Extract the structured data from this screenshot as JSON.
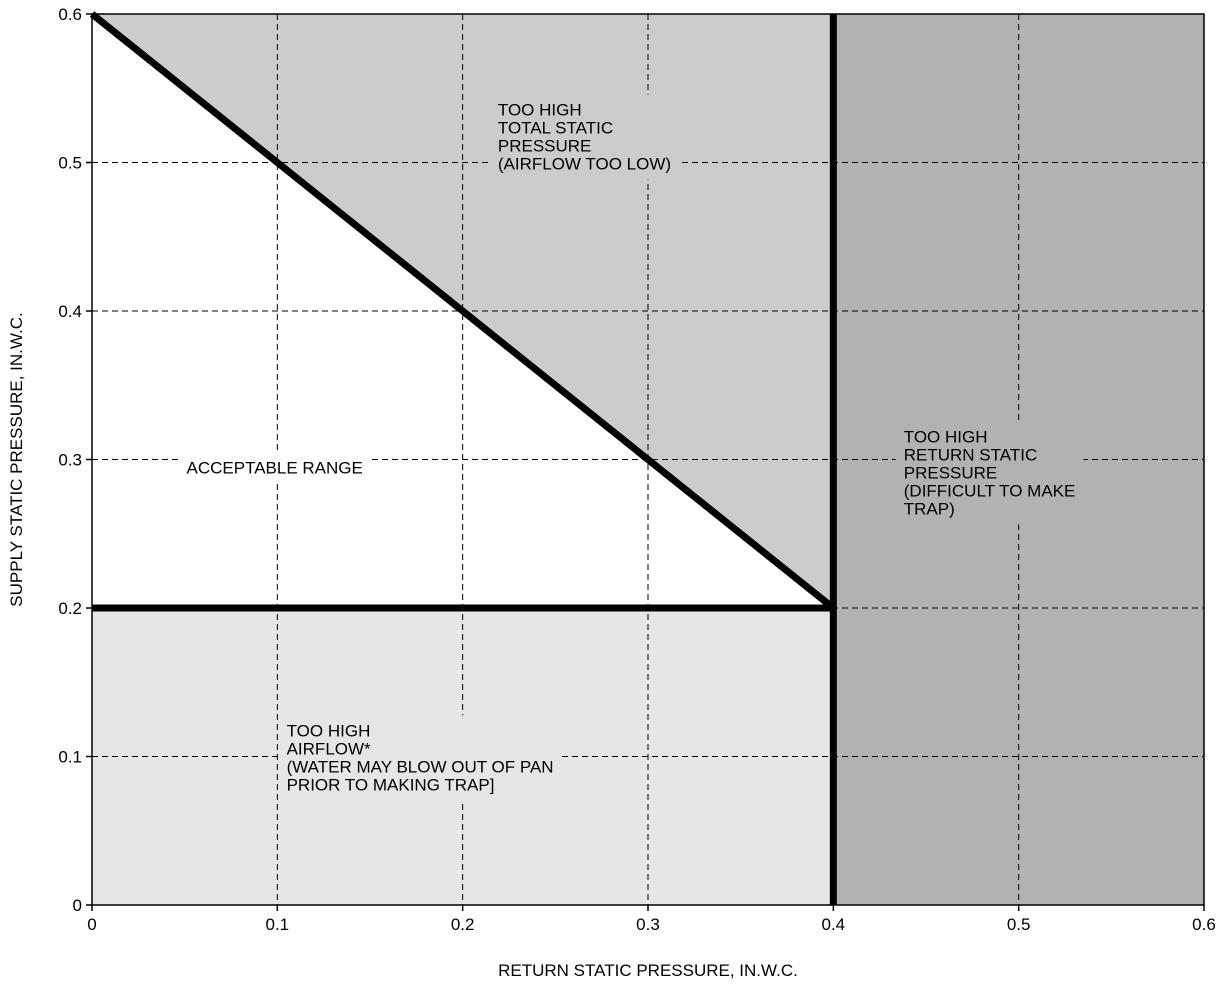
{
  "chart_data": {
    "type": "area",
    "xlabel": "RETURN STATIC PRESSURE, IN.W.C.",
    "ylabel": "SUPPLY STATIC PRESSURE, IN.W.C.",
    "xlim": [
      0,
      0.6
    ],
    "ylim": [
      0,
      0.6
    ],
    "x_ticks": [
      {
        "value": 0,
        "label": "0"
      },
      {
        "value": 0.1,
        "label": "0.1"
      },
      {
        "value": 0.2,
        "label": "0.2"
      },
      {
        "value": 0.3,
        "label": "0.3"
      },
      {
        "value": 0.4,
        "label": "0.4"
      },
      {
        "value": 0.5,
        "label": "0.5"
      },
      {
        "value": 0.6,
        "label": "0.6"
      }
    ],
    "y_ticks": [
      {
        "value": 0,
        "label": "0"
      },
      {
        "value": 0.1,
        "label": "0.1"
      },
      {
        "value": 0.2,
        "label": "0.2"
      },
      {
        "value": 0.3,
        "label": "0.3"
      },
      {
        "value": 0.4,
        "label": "0.4"
      },
      {
        "value": 0.5,
        "label": "0.5"
      },
      {
        "value": 0.6,
        "label": "0.6"
      }
    ],
    "grid": true,
    "grid_style": "dashed",
    "boundary_lines": [
      {
        "name": "total-static-limit",
        "points": [
          [
            0,
            0.6
          ],
          [
            0.4,
            0.2
          ]
        ]
      },
      {
        "name": "airflow-limit",
        "points": [
          [
            0,
            0.2
          ],
          [
            0.4,
            0.2
          ]
        ]
      },
      {
        "name": "return-static-limit",
        "points": [
          [
            0.4,
            0
          ],
          [
            0.4,
            0.6
          ]
        ]
      }
    ],
    "regions": [
      {
        "name": "too-high-airflow",
        "color": "#e6e6e6",
        "polygon": [
          [
            0,
            0
          ],
          [
            0.4,
            0
          ],
          [
            0.4,
            0.2
          ],
          [
            0,
            0.2
          ]
        ],
        "label_lines": [
          "TOO HIGH",
          "AIRFLOW*",
          "(WATER MAY BLOW OUT OF PAN",
          "PRIOR TO MAKING TRAP]"
        ],
        "label_anchor": [
          0.105,
          0.123
        ]
      },
      {
        "name": "acceptable-range",
        "color": "#ffffff",
        "polygon": [
          [
            0,
            0.2
          ],
          [
            0.4,
            0.2
          ],
          [
            0,
            0.6
          ]
        ],
        "label_lines": [
          "ACCEPTABLE RANGE"
        ],
        "label_anchor": [
          0.051,
          0.3
        ]
      },
      {
        "name": "too-high-total-static",
        "color": "#cccccc",
        "polygon": [
          [
            0,
            0.6
          ],
          [
            0.4,
            0.6
          ],
          [
            0.4,
            0.2
          ]
        ],
        "label_lines": [
          "TOO HIGH",
          "TOTAL STATIC",
          "PRESSURE",
          "(AIRFLOW TOO LOW)"
        ],
        "label_anchor": [
          0.219,
          0.541
        ]
      },
      {
        "name": "too-high-return-static",
        "color": "#b2b2b2",
        "polygon": [
          [
            0.4,
            0
          ],
          [
            0.6,
            0
          ],
          [
            0.6,
            0.6
          ],
          [
            0.4,
            0.6
          ]
        ],
        "label_lines": [
          "TOO HIGH",
          "RETURN STATIC",
          "PRESSURE",
          "(DIFFICULT TO MAKE",
          "TRAP)"
        ],
        "label_anchor": [
          0.438,
          0.321
        ]
      }
    ]
  }
}
